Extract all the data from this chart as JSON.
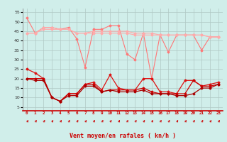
{
  "background_color": "#d0eeea",
  "grid_color": "#b0c8c4",
  "xlabel": "Vent moyen/en rafales ( kn/h )",
  "ylabel_ticks": [
    5,
    10,
    15,
    20,
    25,
    30,
    35,
    40,
    45,
    50,
    55
  ],
  "x_values": [
    0,
    1,
    2,
    3,
    4,
    5,
    6,
    7,
    8,
    9,
    10,
    11,
    12,
    13,
    14,
    15,
    16,
    17,
    18,
    19,
    20,
    21,
    22,
    23
  ],
  "series": [
    {
      "color": "#ff7777",
      "lw": 0.8,
      "marker": "D",
      "ms": 1.5,
      "data": [
        52,
        44,
        47,
        47,
        46,
        47,
        41,
        26,
        46,
        46,
        48,
        48,
        33,
        30,
        44,
        20,
        43,
        34,
        43,
        43,
        43,
        35,
        42,
        42
      ]
    },
    {
      "color": "#ffaaaa",
      "lw": 0.8,
      "marker": "D",
      "ms": 1.5,
      "data": [
        44,
        44,
        47,
        47,
        46,
        46,
        44,
        44,
        45,
        45,
        45,
        45,
        45,
        44,
        44,
        44,
        43,
        43,
        43,
        43,
        43,
        43,
        42,
        42
      ]
    },
    {
      "color": "#ffaaaa",
      "lw": 0.8,
      "marker": "D",
      "ms": 1.5,
      "data": [
        44,
        44,
        46,
        46,
        46,
        46,
        44,
        44,
        44,
        44,
        44,
        44,
        44,
        43,
        43,
        43,
        43,
        43,
        43,
        43,
        43,
        43,
        42,
        42
      ]
    },
    {
      "color": "#dd1111",
      "lw": 0.9,
      "marker": "D",
      "ms": 1.5,
      "data": [
        25,
        23,
        20,
        10,
        8,
        12,
        12,
        17,
        18,
        14,
        22,
        15,
        14,
        14,
        20,
        20,
        13,
        13,
        12,
        19,
        19,
        16,
        17,
        18
      ]
    },
    {
      "color": "#cc0000",
      "lw": 0.9,
      "marker": "D",
      "ms": 1.5,
      "data": [
        20,
        20,
        20,
        10,
        8,
        12,
        12,
        17,
        17,
        13,
        14,
        14,
        14,
        14,
        15,
        13,
        12,
        12,
        12,
        12,
        19,
        16,
        16,
        17
      ]
    },
    {
      "color": "#aa0000",
      "lw": 0.9,
      "marker": "D",
      "ms": 1.5,
      "data": [
        20,
        19,
        19,
        10,
        8,
        11,
        11,
        16,
        16,
        13,
        14,
        13,
        13,
        13,
        14,
        12,
        12,
        12,
        11,
        11,
        12,
        15,
        15,
        17
      ]
    }
  ],
  "arrow_color": "#cc0000",
  "xlim": [
    -0.5,
    23.5
  ],
  "ylim": [
    3,
    57
  ]
}
